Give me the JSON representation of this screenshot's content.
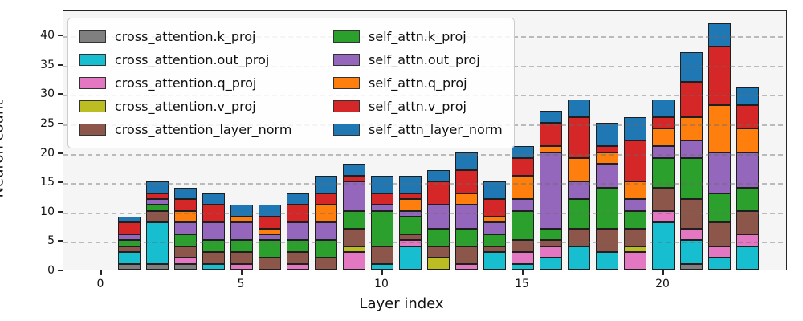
{
  "axes": {
    "ylabel": "Neuron count",
    "xlabel": "Layer index",
    "yticks": [
      0,
      5,
      10,
      15,
      20,
      25,
      30,
      35,
      40
    ],
    "xticks": [
      0,
      5,
      10,
      15,
      20
    ]
  },
  "colors": {
    "cross_attention.k_proj": "#7f7f7f",
    "cross_attention.out_proj": "#17becf",
    "cross_attention.q_proj": "#e377c2",
    "cross_attention.v_proj": "#bcbd22",
    "cross_attention_layer_norm": "#8c564b",
    "self_attn.k_proj": "#2ca02c",
    "self_attn.out_proj": "#9467bd",
    "self_attn.q_proj": "#ff7f0e",
    "self_attn.v_proj": "#d62728",
    "self_attn_layer_norm": "#1f77b4"
  },
  "chart_data": {
    "type": "bar",
    "stacked": true,
    "title": "",
    "xlabel": "Layer index",
    "ylabel": "Neuron count",
    "x": [
      0,
      1,
      2,
      3,
      4,
      5,
      6,
      7,
      8,
      9,
      10,
      11,
      12,
      13,
      14,
      15,
      16,
      17,
      18,
      19,
      20,
      21,
      22,
      23
    ],
    "ylim": [
      0,
      44.2
    ],
    "grid": "dashed horizontal",
    "legend_position": "upper left, 2 columns",
    "series": [
      {
        "name": "cross_attention.k_proj",
        "values": [
          0,
          1,
          1,
          1,
          0,
          0,
          0,
          0,
          0,
          0,
          0,
          0,
          0,
          0,
          0,
          0,
          0,
          0,
          0,
          0,
          0,
          1,
          0,
          0
        ]
      },
      {
        "name": "cross_attention.out_proj",
        "values": [
          0,
          2,
          7,
          0,
          1,
          0,
          0,
          0,
          0,
          0,
          1,
          4,
          0,
          0,
          3,
          1,
          2,
          4,
          3,
          0,
          8,
          4,
          2,
          4
        ]
      },
      {
        "name": "cross_attention.q_proj",
        "values": [
          0,
          0,
          0,
          1,
          0,
          1,
          0,
          1,
          0,
          3,
          0,
          1,
          0,
          1,
          0,
          2,
          2,
          0,
          0,
          3,
          2,
          2,
          2,
          2
        ]
      },
      {
        "name": "cross_attention.v_proj",
        "values": [
          0,
          0,
          0,
          0,
          0,
          0,
          0,
          0,
          0,
          1,
          0,
          0,
          2,
          0,
          0,
          0,
          0,
          0,
          0,
          1,
          0,
          0,
          0,
          0
        ]
      },
      {
        "name": "cross_attention_layer_norm",
        "values": [
          0,
          1,
          2,
          2,
          2,
          2,
          2,
          2,
          2,
          3,
          3,
          1,
          2,
          3,
          1,
          2,
          1,
          3,
          4,
          3,
          4,
          5,
          4,
          4
        ]
      },
      {
        "name": "self_attn.k_proj",
        "values": [
          0,
          1,
          1,
          2,
          2,
          2,
          3,
          2,
          3,
          3,
          6,
          3,
          3,
          3,
          2,
          5,
          2,
          5,
          7,
          3,
          5,
          7,
          5,
          4
        ]
      },
      {
        "name": "self_attn.out_proj",
        "values": [
          0,
          1,
          1,
          2,
          3,
          3,
          1,
          3,
          3,
          5,
          1,
          1,
          4,
          4,
          2,
          2,
          13,
          3,
          4,
          2,
          2,
          3,
          7,
          6
        ]
      },
      {
        "name": "self_attn.q_proj",
        "values": [
          0,
          0,
          0,
          2,
          0,
          1,
          1,
          0,
          3,
          0,
          0,
          2,
          0,
          2,
          1,
          4,
          1,
          4,
          2,
          3,
          3,
          4,
          8,
          4
        ]
      },
      {
        "name": "self_attn.v_proj",
        "values": [
          0,
          2,
          1,
          2,
          3,
          0,
          2,
          3,
          2,
          1,
          2,
          1,
          4,
          4,
          3,
          3,
          4,
          7,
          1,
          7,
          2,
          6,
          10,
          4
        ]
      },
      {
        "name": "self_attn_layer_norm",
        "values": [
          0,
          1,
          2,
          2,
          2,
          2,
          2,
          2,
          3,
          2,
          3,
          3,
          2,
          3,
          3,
          2,
          2,
          3,
          4,
          4,
          3,
          5,
          4,
          3
        ]
      }
    ],
    "stack_totals": [
      0,
      9,
      15,
      14,
      13,
      11,
      11,
      13,
      16,
      18,
      16,
      16,
      17,
      20,
      15,
      21,
      27,
      29,
      25,
      26,
      29,
      37,
      42,
      31
    ]
  }
}
